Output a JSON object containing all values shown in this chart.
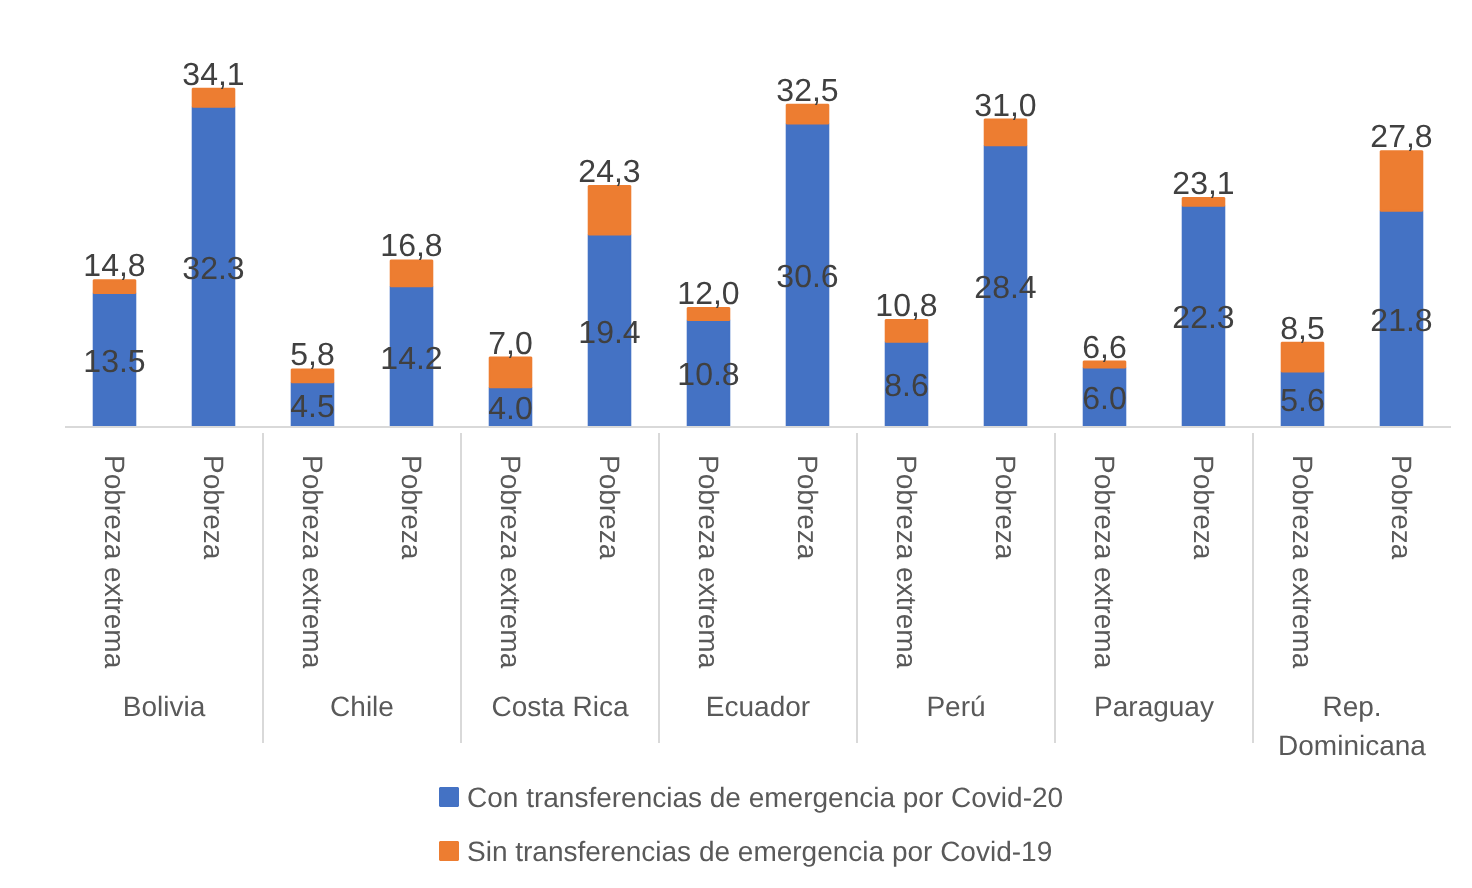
{
  "chart_data": {
    "type": "bar",
    "stacked": true,
    "categories": [
      "Pobreza extrema",
      "Pobreza",
      "Pobreza extrema",
      "Pobreza",
      "Pobreza extrema",
      "Pobreza",
      "Pobreza extrema",
      "Pobreza",
      "Pobreza extrema",
      "Pobreza",
      "Pobreza extrema",
      "Pobreza",
      "Pobreza extrema",
      "Pobreza"
    ],
    "annotations": [
      "Bolivia",
      "Chile",
      "Costa Rica",
      "Ecuador",
      "Perú",
      "Paraguay",
      "Rep. Dominicana"
    ],
    "series": [
      {
        "name": "Con transferencias de emergencia por Covid-20",
        "color": "#4472c4",
        "values": [
          13.5,
          32.3,
          4.5,
          14.2,
          4.0,
          19.4,
          10.8,
          30.6,
          8.6,
          28.4,
          6.0,
          22.3,
          5.6,
          21.8
        ],
        "value_labels": [
          "13.5",
          "32.3",
          "4.5",
          "14.2",
          "4.0",
          "19.4",
          "10.8",
          "30.6",
          "8.6",
          "28.4",
          "6.0",
          "22.3",
          "5.6",
          "21.8"
        ]
      },
      {
        "name": "Sin transferencias de emergencia por Covid-19",
        "color": "#ed7d31",
        "values": [
          1.3,
          1.8,
          1.3,
          2.6,
          3.0,
          4.9,
          1.2,
          1.9,
          2.2,
          2.6,
          0.6,
          0.8,
          2.9,
          6.0
        ]
      }
    ],
    "totals": [
      "14,8",
      "34,1",
      "5,8",
      "16,8",
      "7,0",
      "24,3",
      "12,0",
      "32,5",
      "10,8",
      "31,0",
      "6,6",
      "23,1",
      "8,5",
      "27,8"
    ],
    "legend": "bottom",
    "tick_labels": "x"
  }
}
